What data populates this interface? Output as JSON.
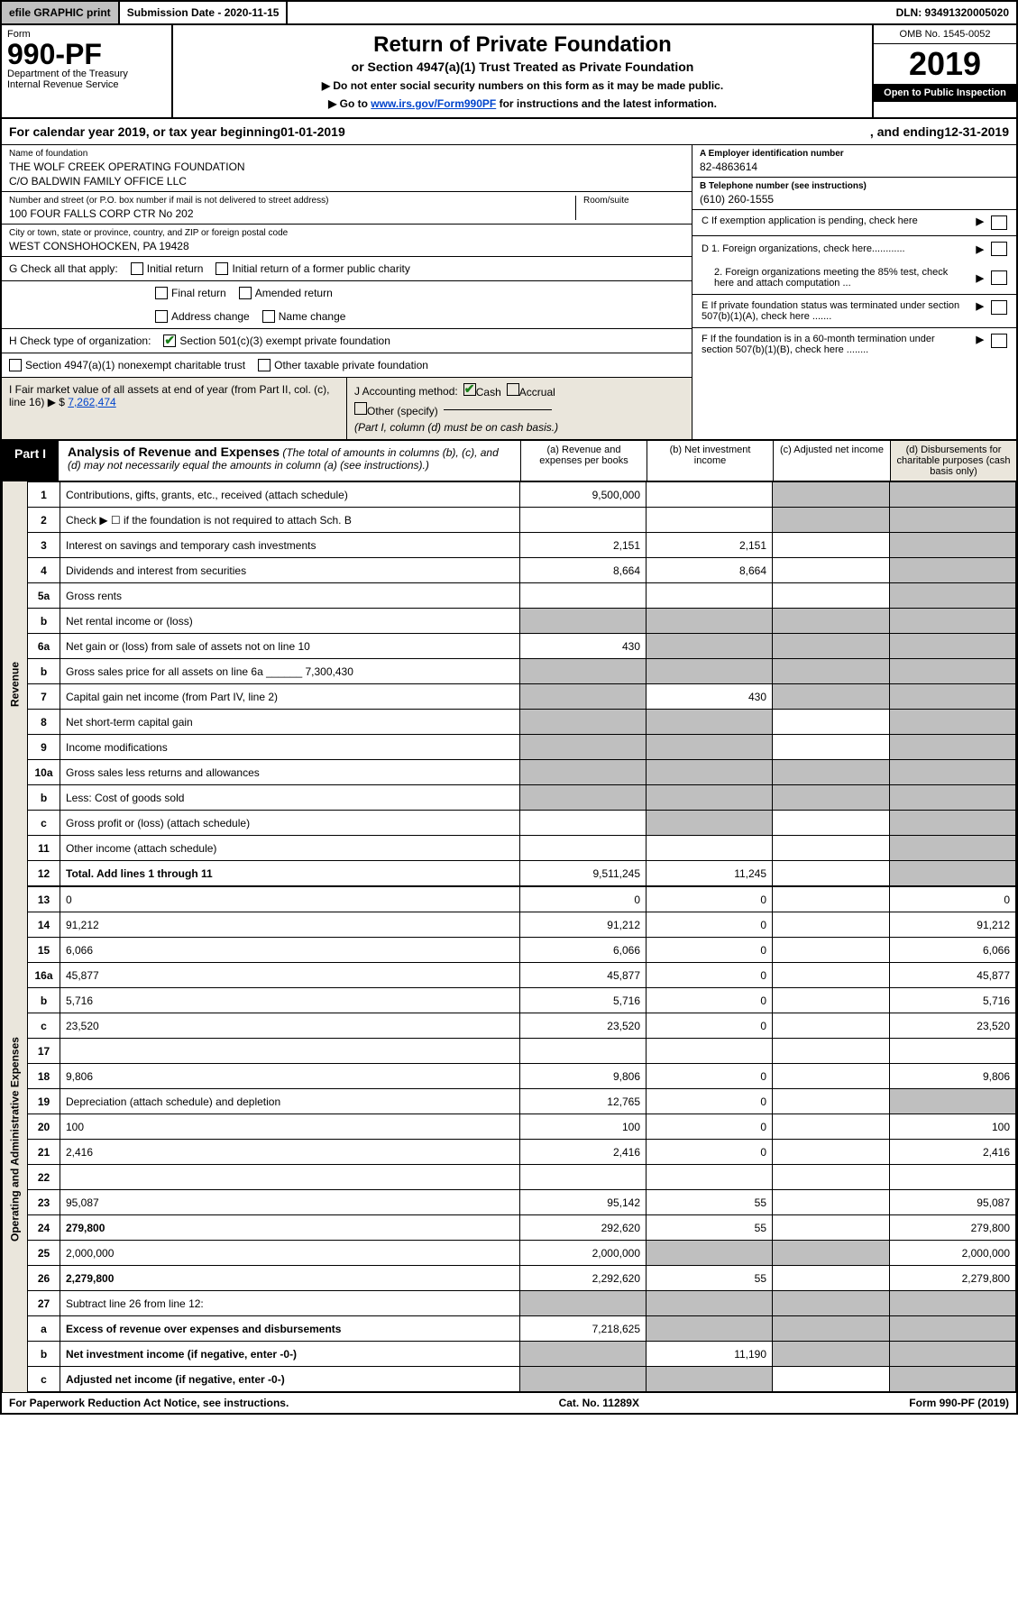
{
  "topbar": {
    "efile": "efile GRAPHIC print",
    "subdate_label": "Submission Date - 2020-11-15",
    "dln": "DLN: 93491320005020"
  },
  "header": {
    "form_word": "Form",
    "form_no": "990-PF",
    "dept": "Department of the Treasury",
    "irs": "Internal Revenue Service",
    "title": "Return of Private Foundation",
    "subtitle": "or Section 4947(a)(1) Trust Treated as Private Foundation",
    "note1": "▶ Do not enter social security numbers on this form as it may be made public.",
    "note2_pre": "▶ Go to ",
    "note2_link": "www.irs.gov/Form990PF",
    "note2_post": " for instructions and the latest information.",
    "omb": "OMB No. 1545-0052",
    "year": "2019",
    "inspect": "Open to Public Inspection"
  },
  "calendar": {
    "pre": "For calendar year 2019, or tax year beginning ",
    "begin": "01-01-2019",
    "mid": ", and ending ",
    "end": "12-31-2019"
  },
  "org": {
    "name_label": "Name of foundation",
    "name1": "THE WOLF CREEK OPERATING FOUNDATION",
    "name2": "C/O BALDWIN FAMILY OFFICE LLC",
    "addr_label": "Number and street (or P.O. box number if mail is not delivered to street address)",
    "addr": "100 FOUR FALLS CORP CTR No 202",
    "room_label": "Room/suite",
    "city_label": "City or town, state or province, country, and ZIP or foreign postal code",
    "city": "WEST CONSHOHOCKEN, PA  19428"
  },
  "right": {
    "a_label": "A Employer identification number",
    "a_val": "82-4863614",
    "b_label": "B Telephone number (see instructions)",
    "b_val": "(610) 260-1555",
    "c_label": "C If exemption application is pending, check here",
    "d1": "D 1. Foreign organizations, check here............",
    "d2": "2. Foreign organizations meeting the 85% test, check here and attach computation ...",
    "e": "E  If private foundation status was terminated under section 507(b)(1)(A), check here .......",
    "f": "F  If the foundation is in a 60-month termination under section 507(b)(1)(B), check here ........"
  },
  "g": {
    "lead": "G Check all that apply:",
    "initial": "Initial return",
    "initial_former": "Initial return of a former public charity",
    "final": "Final return",
    "amended": "Amended return",
    "addr_change": "Address change",
    "name_change": "Name change"
  },
  "h": {
    "lead": "H Check type of organization:",
    "sec501": "Section 501(c)(3) exempt private foundation",
    "sec4947": "Section 4947(a)(1) nonexempt charitable trust",
    "other_tax": "Other taxable private foundation"
  },
  "i": {
    "lead": "I Fair market value of all assets at end of year (from Part II, col. (c), line 16) ▶ $",
    "amount": "7,262,474"
  },
  "j": {
    "lead": "J Accounting method:",
    "cash": "Cash",
    "accrual": "Accrual",
    "other": "Other (specify)",
    "note": "(Part I, column (d) must be on cash basis.)"
  },
  "part1": {
    "badge": "Part I",
    "title": "Analysis of Revenue and Expenses",
    "title_note": "(The total of amounts in columns (b), (c), and (d) may not necessarily equal the amounts in column (a) (see instructions).)",
    "col_a": "(a)  Revenue and expenses per books",
    "col_b": "(b)  Net investment income",
    "col_c": "(c)  Adjusted net income",
    "col_d": "(d)  Disbursements for charitable purposes (cash basis only)"
  },
  "vlabels": {
    "revenue": "Revenue",
    "expenses": "Operating and Administrative Expenses"
  },
  "rows": [
    {
      "n": "1",
      "d": "Contributions, gifts, grants, etc., received (attach schedule)",
      "a": "9,500,000",
      "b": "",
      "c_grey": true,
      "d_grey": true
    },
    {
      "n": "2",
      "d": "Check ▶ ☐ if the foundation is not required to attach Sch. B",
      "a": "",
      "b": "",
      "c_grey": true,
      "d_grey": true,
      "html": true
    },
    {
      "n": "3",
      "d": "Interest on savings and temporary cash investments",
      "a": "2,151",
      "b": "2,151",
      "c": "",
      "d_grey": true
    },
    {
      "n": "4",
      "d": "Dividends and interest from securities",
      "a": "8,664",
      "b": "8,664",
      "c": "",
      "d_grey": true
    },
    {
      "n": "5a",
      "d": "Gross rents",
      "a": "",
      "b": "",
      "c": "",
      "d_grey": true
    },
    {
      "n": "b",
      "d": "Net rental income or (loss)",
      "a_grey": true,
      "b_grey": true,
      "c_grey": true,
      "d_grey": true,
      "inline": true
    },
    {
      "n": "6a",
      "d": "Net gain or (loss) from sale of assets not on line 10",
      "a": "430",
      "b_grey": true,
      "c_grey": true,
      "d_grey": true
    },
    {
      "n": "b",
      "d": "Gross sales price for all assets on line 6a ______ 7,300,430",
      "a_grey": true,
      "b_grey": true,
      "c_grey": true,
      "d_grey": true
    },
    {
      "n": "7",
      "d": "Capital gain net income (from Part IV, line 2)",
      "a_grey": true,
      "b": "430",
      "c_grey": true,
      "d_grey": true
    },
    {
      "n": "8",
      "d": "Net short-term capital gain",
      "a_grey": true,
      "b_grey": true,
      "c": "",
      "d_grey": true
    },
    {
      "n": "9",
      "d": "Income modifications",
      "a_grey": true,
      "b_grey": true,
      "c": "",
      "d_grey": true
    },
    {
      "n": "10a",
      "d": "Gross sales less returns and allowances",
      "a_grey": true,
      "b_grey": true,
      "c_grey": true,
      "d_grey": true,
      "inline": true
    },
    {
      "n": "b",
      "d": "Less: Cost of goods sold",
      "a_grey": true,
      "b_grey": true,
      "c_grey": true,
      "d_grey": true,
      "inline": true
    },
    {
      "n": "c",
      "d": "Gross profit or (loss) (attach schedule)",
      "a": "",
      "b_grey": true,
      "c": "",
      "d_grey": true
    },
    {
      "n": "11",
      "d": "Other income (attach schedule)",
      "a": "",
      "b": "",
      "c": "",
      "d_grey": true
    },
    {
      "n": "12",
      "d": "Total. Add lines 1 through 11",
      "a": "9,511,245",
      "b": "11,245",
      "c": "",
      "d_grey": true,
      "bold": true
    }
  ],
  "exp_rows": [
    {
      "n": "13",
      "d": "0",
      "a": "0",
      "b": "0",
      "c": ""
    },
    {
      "n": "14",
      "d": "91,212",
      "a": "91,212",
      "b": "0",
      "c": ""
    },
    {
      "n": "15",
      "d": "6,066",
      "a": "6,066",
      "b": "0",
      "c": ""
    },
    {
      "n": "16a",
      "d": "45,877",
      "a": "45,877",
      "b": "0",
      "c": ""
    },
    {
      "n": "b",
      "d": "5,716",
      "a": "5,716",
      "b": "0",
      "c": ""
    },
    {
      "n": "c",
      "d": "23,520",
      "a": "23,520",
      "b": "0",
      "c": ""
    },
    {
      "n": "17",
      "d": "",
      "a": "",
      "b": "",
      "c": ""
    },
    {
      "n": "18",
      "d": "9,806",
      "a": "9,806",
      "b": "0",
      "c": ""
    },
    {
      "n": "19",
      "d": "Depreciation (attach schedule) and depletion",
      "a": "12,765",
      "b": "0",
      "c": "",
      "d_grey": true
    },
    {
      "n": "20",
      "d": "100",
      "a": "100",
      "b": "0",
      "c": ""
    },
    {
      "n": "21",
      "d": "2,416",
      "a": "2,416",
      "b": "0",
      "c": ""
    },
    {
      "n": "22",
      "d": "",
      "a": "",
      "b": "",
      "c": ""
    },
    {
      "n": "23",
      "d": "95,087",
      "a": "95,142",
      "b": "55",
      "c": ""
    },
    {
      "n": "24",
      "d": "279,800",
      "a": "292,620",
      "b": "55",
      "c": "",
      "bold": true
    },
    {
      "n": "25",
      "d": "2,000,000",
      "a": "2,000,000",
      "b_grey": true,
      "c_grey": true
    },
    {
      "n": "26",
      "d": "2,279,800",
      "a": "2,292,620",
      "b": "55",
      "c": "",
      "bold": true
    },
    {
      "n": "27",
      "d": "Subtract line 26 from line 12:",
      "a_grey": true,
      "b_grey": true,
      "c_grey": true,
      "d_grey": true
    },
    {
      "n": "a",
      "d": "Excess of revenue over expenses and disbursements",
      "a": "7,218,625",
      "b_grey": true,
      "c_grey": true,
      "d_grey": true,
      "bold": true
    },
    {
      "n": "b",
      "d": "Net investment income (if negative, enter -0-)",
      "a_grey": true,
      "b": "11,190",
      "c_grey": true,
      "d_grey": true,
      "bold": true
    },
    {
      "n": "c",
      "d": "Adjusted net income (if negative, enter -0-)",
      "a_grey": true,
      "b_grey": true,
      "c": "",
      "d_grey": true,
      "bold": true
    }
  ],
  "footer": {
    "left": "For Paperwork Reduction Act Notice, see instructions.",
    "mid": "Cat. No. 11289X",
    "right": "Form 990-PF (2019)"
  },
  "style": {
    "shade_color": "#bfbfbf",
    "stripe_color": "#eae6dc",
    "link_color": "#0044cc"
  }
}
